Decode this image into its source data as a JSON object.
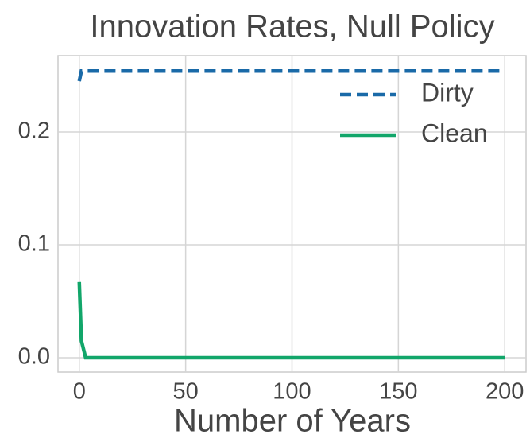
{
  "chart_data": {
    "type": "line",
    "title": "Innovation Rates, Null Policy",
    "xlabel": "Number of Years",
    "x": [
      0,
      1,
      3,
      200
    ],
    "series": [
      {
        "name": "Dirty",
        "color": "#1a6aa8",
        "dash": true,
        "values": [
          0.245,
          0.254,
          0.254,
          0.254
        ]
      },
      {
        "name": "Clean",
        "color": "#12a66a",
        "dash": false,
        "values": [
          0.067,
          0.015,
          0,
          0
        ]
      }
    ],
    "xlim": [
      -10,
      210
    ],
    "xticks": [
      0,
      50,
      100,
      150,
      200
    ],
    "ylim": [
      -0.0127,
      0.2676
    ],
    "yticks": [
      {
        "value": 0,
        "label": "0.0"
      },
      0.1,
      0.2
    ],
    "grid": true,
    "legend": "upper right"
  }
}
